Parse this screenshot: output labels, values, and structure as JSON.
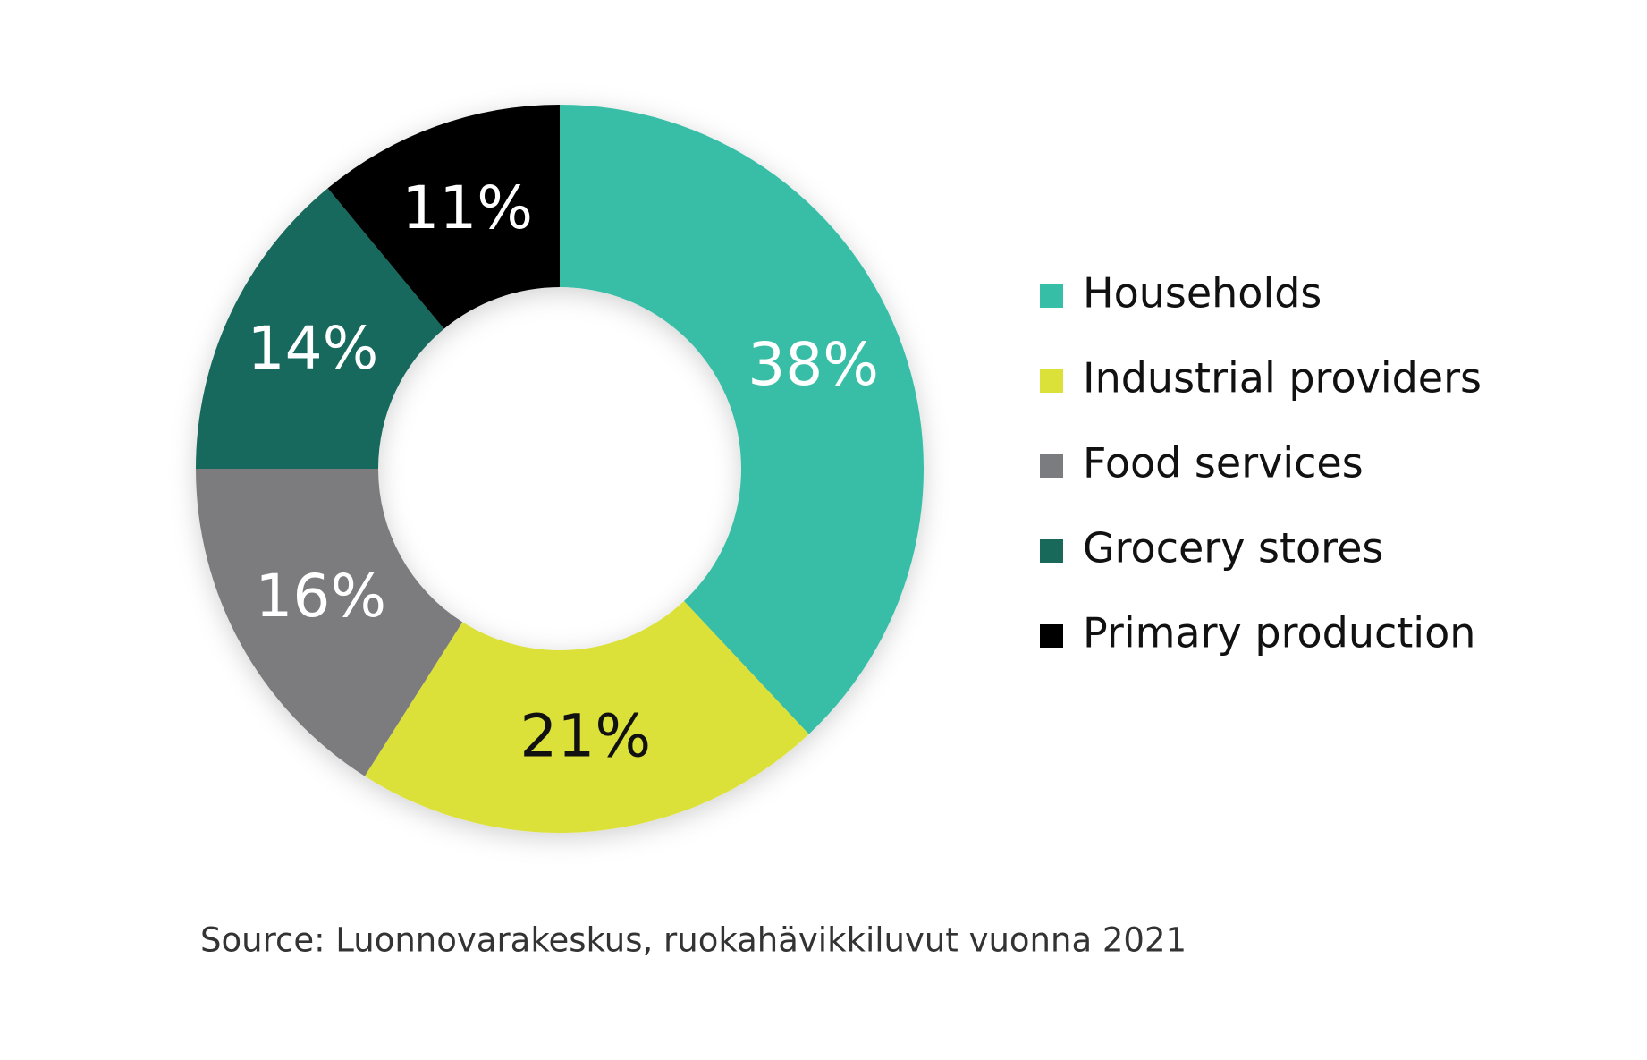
{
  "chart_data": {
    "type": "donut",
    "categories": [
      "Households",
      "Industrial providers",
      "Food services",
      "Grocery stores",
      "Primary production"
    ],
    "values": [
      38,
      21,
      16,
      14,
      11
    ],
    "value_labels": [
      "38%",
      "21%",
      "16%",
      "14%",
      "11%"
    ],
    "colors": [
      "#37bea6",
      "#dbe138",
      "#7b7c7f",
      "#19695b",
      "#000000"
    ],
    "legend": "right",
    "source": "Source: Luonnovarakeskus, ruokahävikkiluvut vuonna 2021"
  }
}
